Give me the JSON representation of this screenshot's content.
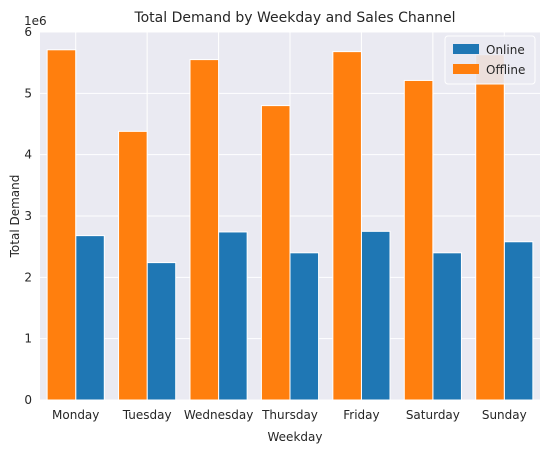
{
  "chart_data": {
    "type": "bar",
    "title": "Total Demand by Weekday and Sales Channel",
    "xlabel": "Weekday",
    "ylabel": "Total Demand",
    "y_multiplier_label": "1e6",
    "categories": [
      "Monday",
      "Tuesday",
      "Wednesday",
      "Thursday",
      "Friday",
      "Saturday",
      "Sunday"
    ],
    "series": [
      {
        "name": "Online",
        "color": "#1f77b4",
        "values": [
          2.68,
          2.24,
          2.74,
          2.4,
          2.75,
          2.4,
          2.58
        ]
      },
      {
        "name": "Offline",
        "color": "#ff7f0e",
        "values": [
          5.71,
          4.38,
          5.55,
          4.8,
          5.68,
          5.21,
          5.63
        ]
      }
    ],
    "y_unit_note": "values in millions (1e6)",
    "ylim": [
      0,
      6
    ],
    "yticks": [
      "0",
      "1",
      "2",
      "3",
      "4",
      "5",
      "6"
    ],
    "grid": true,
    "legend_position": "top-right",
    "background": "#eaeaf2"
  }
}
